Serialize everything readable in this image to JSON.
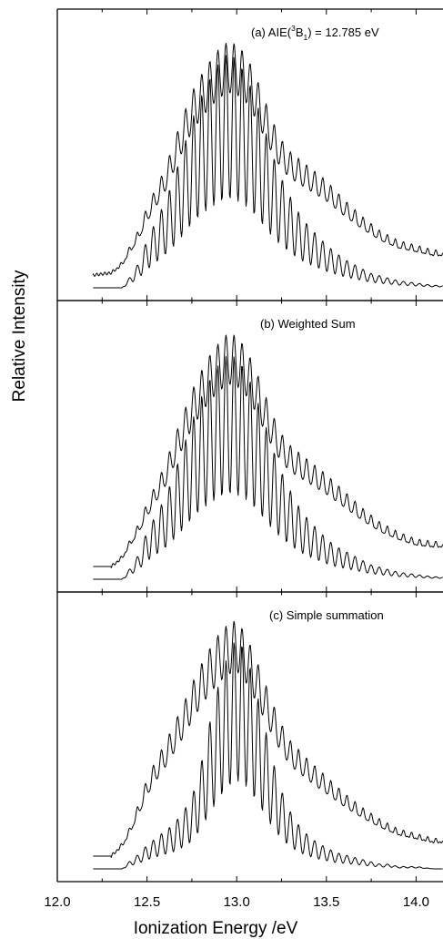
{
  "chart_data": {
    "type": "line",
    "xlabel": "Ionization Energy /eV",
    "ylabel": "Relative Intensity",
    "xlim": [
      12.0,
      14.15
    ],
    "x_ticks": [
      "12.0",
      "12.5",
      "13.0",
      "13.5",
      "14.0"
    ],
    "grid": false,
    "legend": "none",
    "panels": [
      {
        "label": "(a) AIE(3B1) = 12.785 eV",
        "label_parts": {
          "prefix": "(a) AIE(",
          "sup": "3",
          "base": "B",
          "sub": "1",
          "suffix": ") = 12.785 eV"
        },
        "series": [
          {
            "style": "envelope (upper)",
            "x": [
              12.2,
              12.3,
              12.36,
              12.4,
              12.45,
              12.5,
              12.55,
              12.6,
              12.65,
              12.7,
              12.75,
              12.8,
              12.85,
              12.9,
              12.95,
              13.0,
              13.05,
              13.1,
              13.15,
              13.2,
              13.25,
              13.3,
              13.4,
              13.5,
              13.6,
              13.7,
              13.8,
              13.9,
              14.0,
              14.1,
              14.15
            ],
            "y": [
              0.0,
              0.01,
              0.05,
              0.11,
              0.18,
              0.28,
              0.36,
              0.44,
              0.55,
              0.66,
              0.76,
              0.83,
              0.89,
              0.94,
              0.97,
              0.96,
              0.92,
              0.84,
              0.74,
              0.64,
              0.56,
              0.51,
              0.45,
              0.39,
              0.31,
              0.24,
              0.18,
              0.14,
              0.12,
              0.1,
              0.1
            ]
          },
          {
            "style": "vibrational progression (lower)",
            "x": [
              12.36,
              12.4,
              12.45,
              12.5,
              12.55,
              12.6,
              12.65,
              12.7,
              12.75,
              12.8,
              12.85,
              12.9,
              12.95,
              13.0,
              13.05,
              13.1,
              13.15,
              13.2,
              13.25,
              13.3,
              13.35,
              13.4,
              13.45,
              13.5,
              13.55,
              13.6,
              13.65,
              13.7,
              13.75,
              13.8,
              13.85,
              13.9,
              14.0,
              14.1,
              14.15
            ],
            "y": [
              0.0,
              0.04,
              0.1,
              0.2,
              0.28,
              0.36,
              0.46,
              0.58,
              0.7,
              0.8,
              0.88,
              0.94,
              0.98,
              0.96,
              0.9,
              0.8,
              0.68,
              0.56,
              0.46,
              0.38,
              0.31,
              0.26,
              0.22,
              0.18,
              0.15,
              0.12,
              0.1,
              0.08,
              0.06,
              0.05,
              0.04,
              0.03,
              0.02,
              0.01,
              0.01
            ]
          }
        ]
      },
      {
        "label": "(b) Weighted Sum",
        "series": [
          {
            "style": "envelope (upper)",
            "x": [
              12.3,
              12.36,
              12.4,
              12.45,
              12.5,
              12.55,
              12.6,
              12.65,
              12.7,
              12.75,
              12.8,
              12.85,
              12.9,
              12.95,
              13.0,
              13.05,
              13.1,
              13.15,
              13.2,
              13.25,
              13.3,
              13.4,
              13.5,
              13.6,
              13.7,
              13.8,
              13.9,
              14.0,
              14.1,
              14.15
            ],
            "y": [
              0.0,
              0.04,
              0.1,
              0.17,
              0.26,
              0.34,
              0.42,
              0.53,
              0.63,
              0.73,
              0.81,
              0.88,
              0.93,
              0.97,
              0.96,
              0.91,
              0.83,
              0.73,
              0.63,
              0.55,
              0.5,
              0.44,
              0.38,
              0.31,
              0.24,
              0.18,
              0.14,
              0.11,
              0.1,
              0.1
            ]
          },
          {
            "style": "vibrational progression (lower)",
            "x": [
              12.36,
              12.4,
              12.45,
              12.5,
              12.55,
              12.6,
              12.65,
              12.7,
              12.75,
              12.8,
              12.85,
              12.9,
              12.95,
              13.0,
              13.05,
              13.1,
              13.15,
              13.2,
              13.25,
              13.3,
              13.35,
              13.4,
              13.45,
              13.5,
              13.55,
              13.6,
              13.65,
              13.7,
              13.75,
              13.8,
              13.85,
              13.9,
              14.0,
              14.1,
              14.15
            ],
            "y": [
              0.0,
              0.04,
              0.1,
              0.2,
              0.27,
              0.34,
              0.44,
              0.55,
              0.66,
              0.76,
              0.84,
              0.9,
              0.94,
              0.93,
              0.88,
              0.78,
              0.67,
              0.55,
              0.45,
              0.37,
              0.3,
              0.25,
              0.21,
              0.17,
              0.14,
              0.12,
              0.1,
              0.08,
              0.06,
              0.05,
              0.04,
              0.03,
              0.02,
              0.01,
              0.01
            ]
          }
        ]
      },
      {
        "label": "(c) Simple summation",
        "series": [
          {
            "style": "envelope (upper)",
            "x": [
              12.3,
              12.36,
              12.4,
              12.45,
              12.5,
              12.55,
              12.6,
              12.65,
              12.7,
              12.75,
              12.8,
              12.85,
              12.9,
              12.95,
              13.0,
              13.05,
              13.1,
              13.15,
              13.2,
              13.25,
              13.3,
              13.4,
              13.5,
              13.6,
              13.7,
              13.8,
              13.9,
              14.0,
              14.1,
              14.15
            ],
            "y": [
              0.0,
              0.05,
              0.11,
              0.21,
              0.32,
              0.4,
              0.47,
              0.55,
              0.63,
              0.72,
              0.8,
              0.87,
              0.93,
              0.97,
              0.99,
              0.93,
              0.84,
              0.74,
              0.64,
              0.55,
              0.48,
              0.4,
              0.33,
              0.26,
              0.2,
              0.15,
              0.11,
              0.09,
              0.07,
              0.07
            ]
          },
          {
            "style": "vibrational progression (lower)",
            "x": [
              12.36,
              12.4,
              12.45,
              12.5,
              12.55,
              12.6,
              12.65,
              12.7,
              12.75,
              12.8,
              12.85,
              12.9,
              12.95,
              13.0,
              13.05,
              13.1,
              13.15,
              13.2,
              13.25,
              13.3,
              13.35,
              13.4,
              13.45,
              13.5,
              13.55,
              13.6,
              13.65,
              13.7,
              13.75,
              13.8,
              13.85,
              13.9,
              14.0,
              14.1,
              14.15
            ],
            "y": [
              0.0,
              0.03,
              0.06,
              0.1,
              0.13,
              0.16,
              0.19,
              0.24,
              0.3,
              0.44,
              0.62,
              0.78,
              0.9,
              0.98,
              0.92,
              0.78,
              0.62,
              0.46,
              0.33,
              0.24,
              0.18,
              0.14,
              0.11,
              0.09,
              0.07,
              0.06,
              0.05,
              0.04,
              0.03,
              0.02,
              0.02,
              0.01,
              0.01,
              0.0,
              0.0
            ]
          }
        ]
      }
    ]
  }
}
